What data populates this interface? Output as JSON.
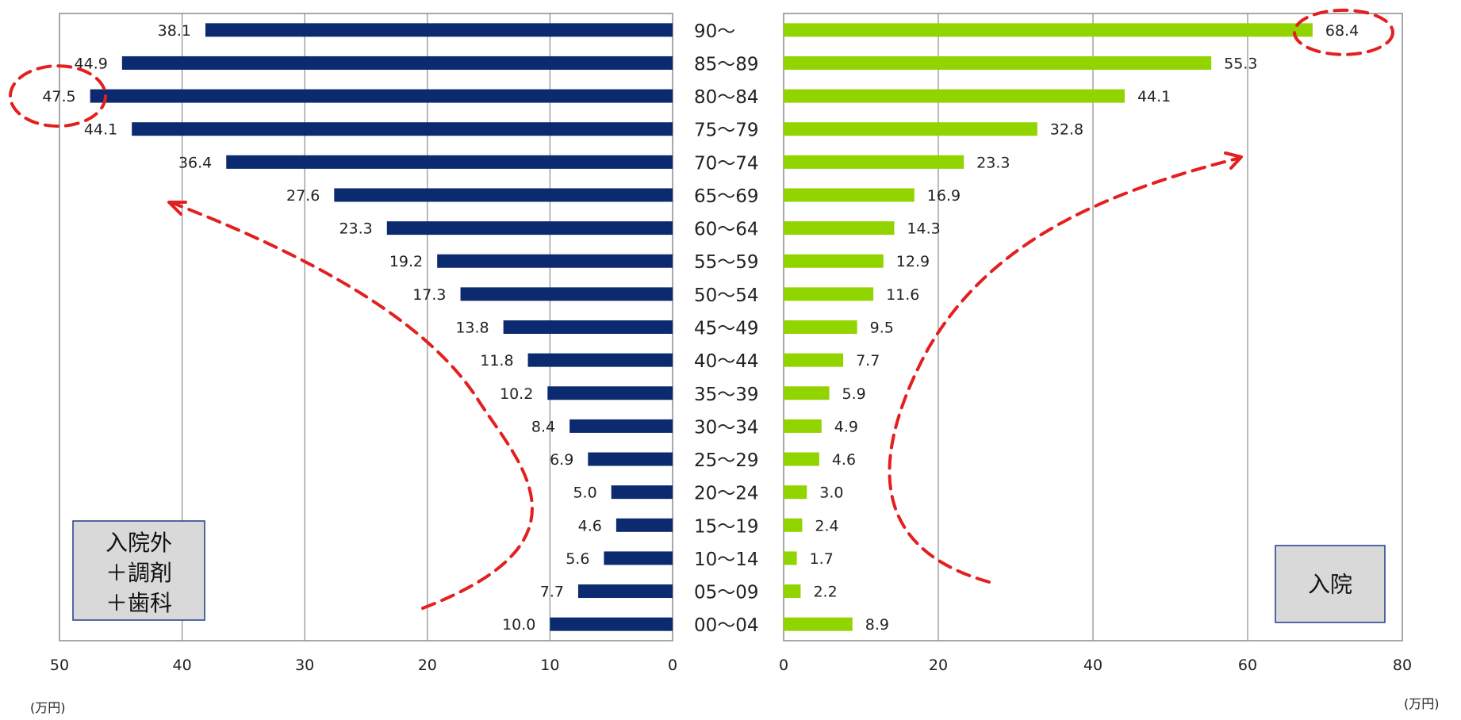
{
  "chart_data": [
    {
      "type": "bar",
      "orientation": "horizontal-reversed",
      "title": "",
      "box_label": [
        "入院外",
        "＋調剤",
        "＋歯科"
      ],
      "unit_label": "(万円)",
      "categories": [
        "90～",
        "85～89",
        "80～84",
        "75～79",
        "70～74",
        "65～69",
        "60～64",
        "55～59",
        "50～54",
        "45～49",
        "40～44",
        "35～39",
        "30～34",
        "25～29",
        "20～24",
        "15～19",
        "10～14",
        "05～09",
        "00～04"
      ],
      "values": [
        38.1,
        44.9,
        47.5,
        44.1,
        36.4,
        27.6,
        23.3,
        19.2,
        17.3,
        13.8,
        11.8,
        10.2,
        8.4,
        6.9,
        5.0,
        4.6,
        5.6,
        7.7,
        10.0
      ],
      "value_labels": [
        "38.1",
        "44.9",
        "47.5",
        "44.1",
        "36.4",
        "27.6",
        "23.3",
        "19.2",
        "17.3",
        "13.8",
        "11.8",
        "10.2",
        "8.4",
        "6.9",
        "5.0",
        "4.6",
        "5.6",
        "7.7",
        "10.0"
      ],
      "xlim": [
        0,
        50
      ],
      "ticks": [
        "50",
        "40",
        "30",
        "20",
        "10",
        "0"
      ],
      "tick_values": [
        50,
        40,
        30,
        20,
        10,
        0
      ],
      "highlight_category": "80～84",
      "grid": "vertical",
      "color": "#0b2a70"
    },
    {
      "type": "bar",
      "orientation": "horizontal",
      "title": "",
      "box_label": [
        "入院"
      ],
      "unit_label": "(万円)",
      "categories": [
        "90～",
        "85～89",
        "80～84",
        "75～79",
        "70～74",
        "65～69",
        "60～64",
        "55～59",
        "50～54",
        "45～49",
        "40～44",
        "35～39",
        "30～34",
        "25～29",
        "20～24",
        "15～19",
        "10～14",
        "05～09",
        "00～04"
      ],
      "values": [
        68.4,
        55.3,
        44.1,
        32.8,
        23.3,
        16.9,
        14.3,
        12.9,
        11.6,
        9.5,
        7.7,
        5.9,
        4.9,
        4.6,
        3.0,
        2.4,
        1.7,
        2.2,
        8.9
      ],
      "value_labels": [
        "68.4",
        "55.3",
        "44.1",
        "32.8",
        "23.3",
        "16.9",
        "14.3",
        "12.9",
        "11.6",
        "9.5",
        "7.7",
        "5.9",
        "4.9",
        "4.6",
        "3.0",
        "2.4",
        "1.7",
        "2.2",
        "8.9"
      ],
      "xlim": [
        0,
        80
      ],
      "ticks": [
        "0",
        "20",
        "40",
        "60",
        "80"
      ],
      "tick_values": [
        0,
        20,
        40,
        60,
        80
      ],
      "highlight_category": "90～",
      "grid": "vertical",
      "color": "#92d400"
    }
  ],
  "colors": {
    "annotation": "#e41f1f",
    "box_fill": "#d9d9d9",
    "box_border": "#1f3b8c",
    "grid": "#8c8c8c"
  }
}
